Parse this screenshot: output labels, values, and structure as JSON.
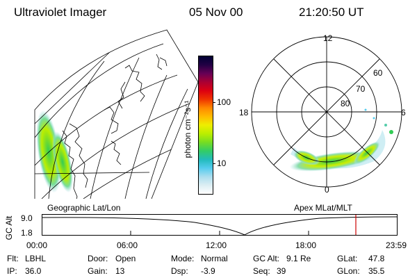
{
  "header": {
    "title": "Ultraviolet Imager",
    "date": "05 Nov 00",
    "time": "21:20:50 UT"
  },
  "colorbar": {
    "unit_label": "photon cm⁻²s⁻¹",
    "ticks": [
      "100",
      "10"
    ],
    "colors": [
      "#000033",
      "#220044",
      "#660055",
      "#aa0033",
      "#dd0011",
      "#ee3300",
      "#ff8800",
      "#ffbb00",
      "#eeee00",
      "#bbee00",
      "#77dd22",
      "#33cc66",
      "#22bbbb",
      "#55ccee",
      "#aaddee",
      "#ddeef3",
      "#ffffff"
    ]
  },
  "panels": {
    "left_caption": "Geographic Lat/Lon",
    "right_caption": "Apex MLat/MLT",
    "polar": {
      "mlt_labels": {
        "top": "12",
        "left": "18",
        "right": "6",
        "bottom": "0"
      },
      "lat_labels": [
        "60",
        "70",
        "80"
      ]
    }
  },
  "timeline": {
    "axis_label": "GC Alt",
    "y_ticks": [
      "9.0",
      "1.8"
    ],
    "x_ticks": [
      "00:00",
      "06:00",
      "12:00",
      "18:00",
      "23:59"
    ],
    "marker_color": "#cc0000"
  },
  "info": {
    "flt_label": "Flt:",
    "flt_value": "LBHL",
    "ip_label": "IP:",
    "ip_value": "36.0",
    "door_label": "Door:",
    "door_value": "Open",
    "gain_label": "Gain:",
    "gain_value": "13",
    "mode_label": "Mode:",
    "mode_value": "Normal",
    "dsp_label": "Dsp:",
    "dsp_value": "-3.9",
    "gcalt_label": "GC Alt:",
    "gcalt_value": "9.1 Re",
    "seq_label": "Seq:",
    "seq_value": "39",
    "glat_label": "GLat:",
    "glat_value": "47.8",
    "glon_label": "GLon:",
    "glon_value": "35.5"
  }
}
